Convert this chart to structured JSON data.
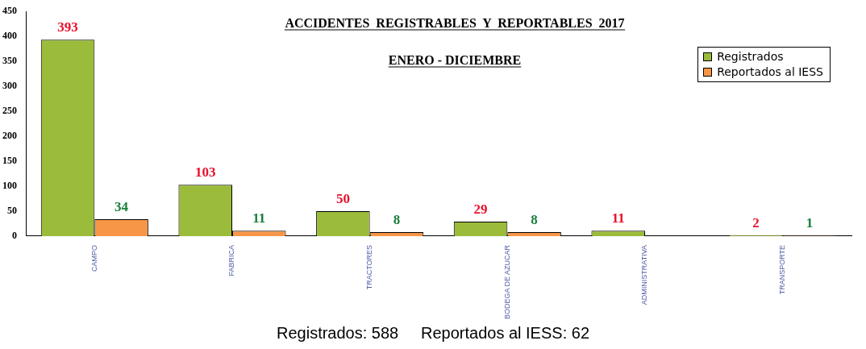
{
  "chart_data": {
    "type": "bar",
    "title": "ACCIDENTES  REGISTRABLES  Y  REPORTABLES  2017",
    "subtitle": "ENERO - DICIEMBRE",
    "categories": [
      "CAMPO",
      "FABRICA",
      "TRACTORES",
      "BODEGA DE AZUCAR",
      "ADMINISTRATIVA",
      "TRANSPORTE"
    ],
    "series": [
      {
        "name": "Registrados",
        "color": "#9bbb3b",
        "values": [
          393,
          103,
          50,
          29,
          11,
          2
        ]
      },
      {
        "name": "Reportados al IESS",
        "color": "#f79646",
        "values": [
          34,
          11,
          8,
          8,
          null,
          1
        ]
      }
    ],
    "ylim": [
      0,
      450
    ],
    "yticks": [
      0,
      50,
      100,
      150,
      200,
      250,
      300,
      350,
      400,
      450
    ],
    "grid": false,
    "legend": "top right",
    "data_labels": true,
    "annotations": [
      "Registrados: 588     Reportados al IESS: 62"
    ]
  }
}
